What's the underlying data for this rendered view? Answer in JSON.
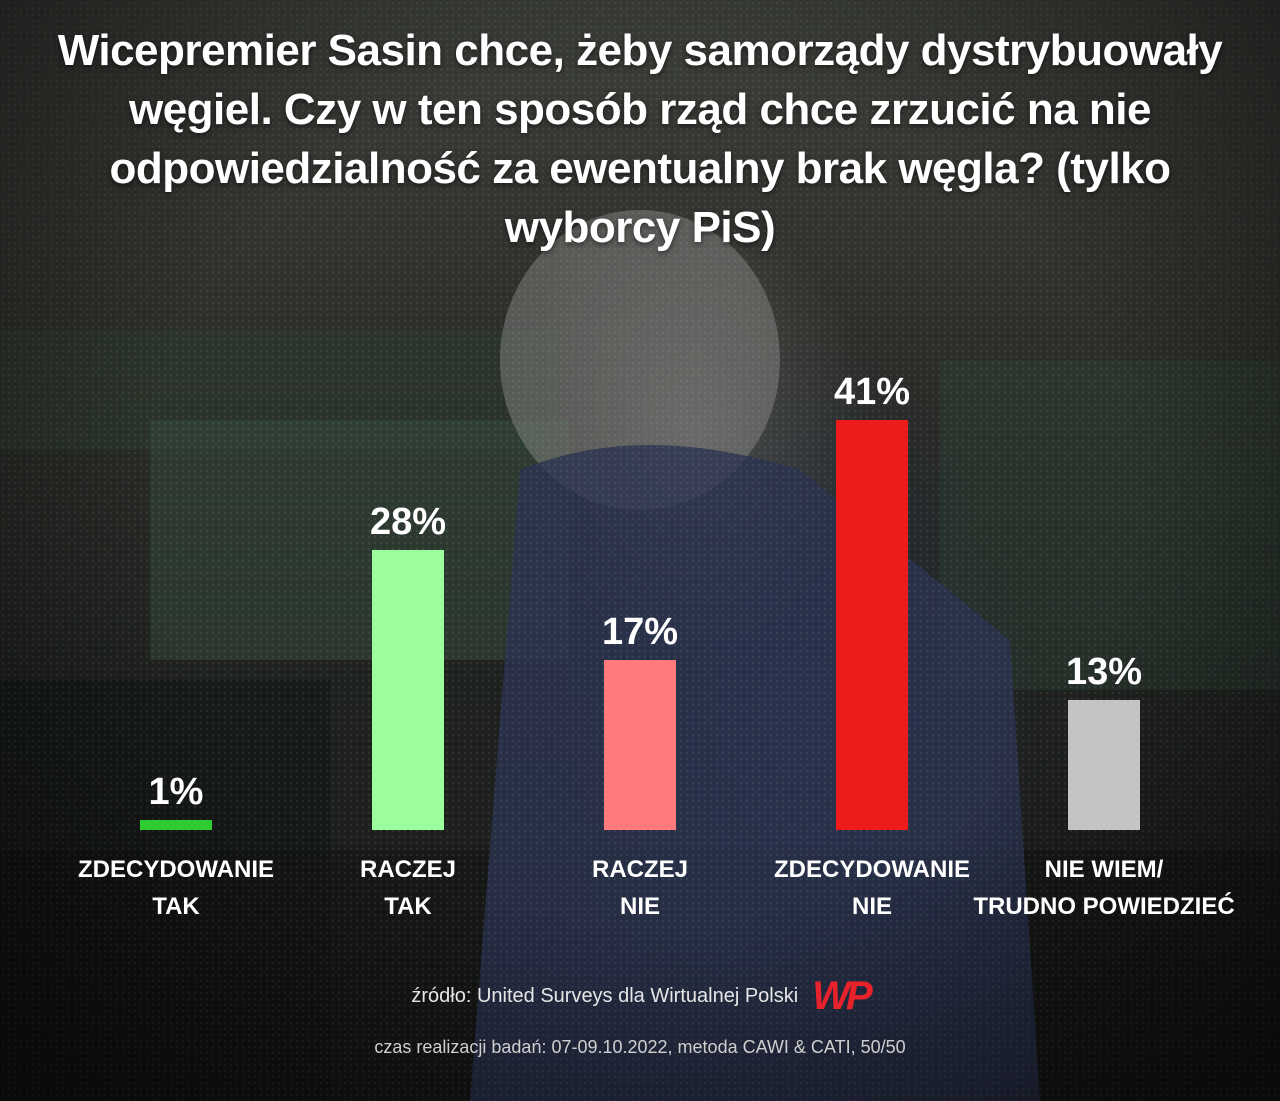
{
  "title": "Wicepremier Sasin chce, żeby samorządy dystrybuowały węgiel. Czy w ten sposób rząd chce zrzucić na nie odpowiedzialność za ewentualny brak węgla? (tylko wyborcy PiS)",
  "chart_data": {
    "type": "bar",
    "title": "Wicepremier Sasin chce, żeby samorządy dystrybuowały węgiel. Czy w ten sposób rząd chce zrzucić na nie odpowiedzialność za ewentualny brak węgla? (tylko wyborcy PiS)",
    "categories": [
      [
        "ZDECYDOWANIE",
        "TAK"
      ],
      [
        "RACZEJ",
        "TAK"
      ],
      [
        "RACZEJ",
        "NIE"
      ],
      [
        "ZDECYDOWANIE",
        "NIE"
      ],
      [
        "NIE WIEM/",
        "TRUDNO POWIEDZIEĆ"
      ]
    ],
    "values": [
      1,
      28,
      17,
      41,
      13
    ],
    "value_labels": [
      "1%",
      "28%",
      "17%",
      "41%",
      "13%"
    ],
    "colors": [
      "#2ecc2e",
      "#9cfd9c",
      "#ff7b7b",
      "#ee1b1b",
      "#c4c4c4"
    ],
    "ylim": [
      0,
      41
    ],
    "grid": false,
    "legend": "none"
  },
  "footer": {
    "source": "źródło: United Surveys dla Wirtualnej Polski",
    "logo": "WP",
    "method": "czas realizacji badań: 07-09.10.2022, metoda CAWI & CATI, 50/50"
  },
  "logo_name": "wp-logo"
}
